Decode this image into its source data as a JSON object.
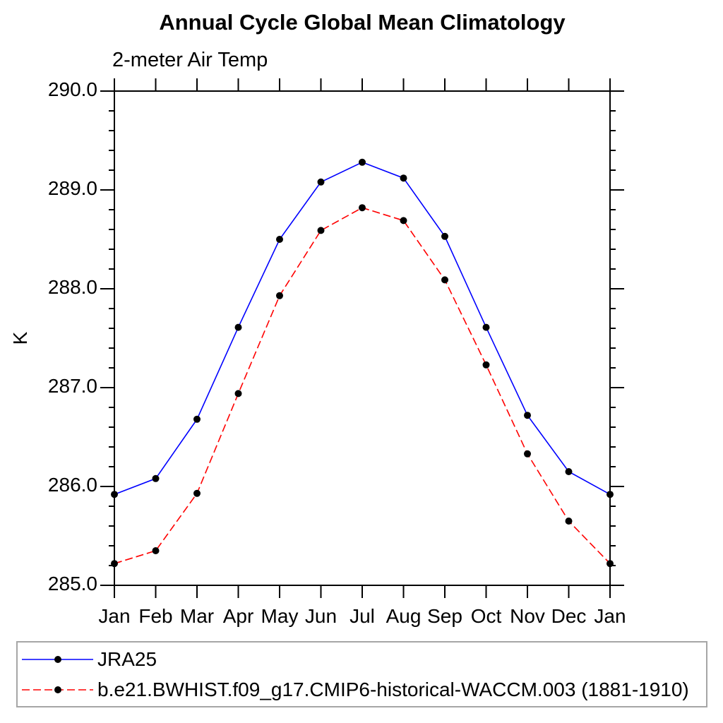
{
  "chart_data": {
    "type": "line",
    "title": "Annual Cycle Global Mean Climatology",
    "subtitle": "2-meter Air Temp",
    "ylabel": "K",
    "xlabel": "",
    "x_categories": [
      "Jan",
      "Feb",
      "Mar",
      "Apr",
      "May",
      "Jun",
      "Jul",
      "Aug",
      "Sep",
      "Oct",
      "Nov",
      "Dec",
      "Jan"
    ],
    "ylim": [
      285.0,
      290.0
    ],
    "ytick_labels": [
      "285.0",
      "286.0",
      "287.0",
      "288.0",
      "289.0",
      "290.0"
    ],
    "ytick_interval_major": 1.0,
    "ytick_interval_minor": 0.2,
    "grid": false,
    "legend_position": "bottom-box",
    "frame_color": "#000000",
    "legend_border_color": "#a6a6a6",
    "series": [
      {
        "name": "JRA25",
        "line_color": "#0000ff",
        "line_style": "solid",
        "marker": "filled-circle",
        "marker_color": "#000000",
        "values": [
          285.92,
          286.08,
          286.68,
          287.61,
          288.5,
          289.08,
          289.28,
          289.12,
          288.53,
          287.61,
          286.72,
          286.15,
          285.92
        ]
      },
      {
        "name": "b.e21.BWHIST.f09_g17.CMIP6-historical-WACCM.003 (1881-1910)",
        "line_color": "#ff0000",
        "line_style": "dashed",
        "marker": "filled-circle",
        "marker_color": "#000000",
        "values": [
          285.22,
          285.35,
          285.93,
          286.94,
          287.93,
          288.59,
          288.82,
          288.69,
          288.09,
          287.23,
          286.33,
          285.65,
          285.22
        ]
      }
    ]
  }
}
